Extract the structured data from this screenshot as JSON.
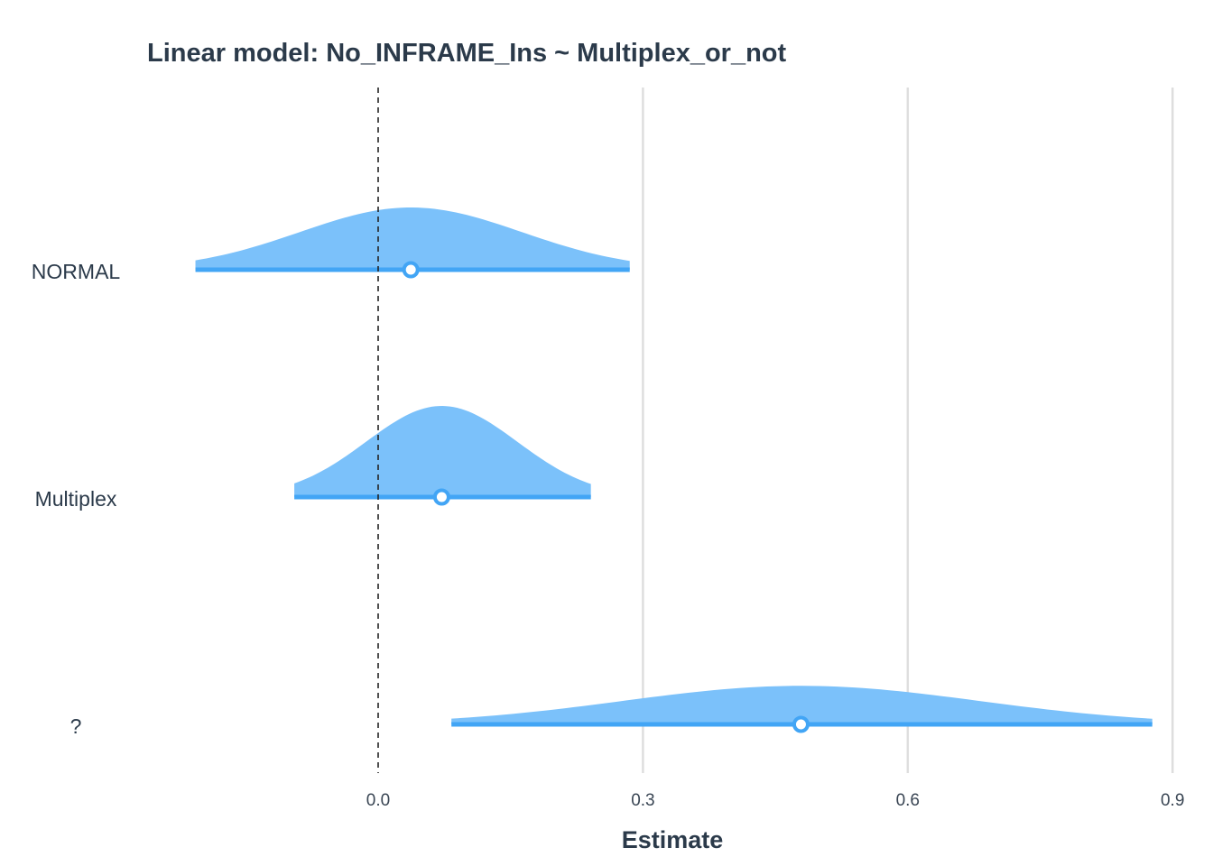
{
  "chart_data": {
    "type": "area",
    "title": "Linear model: No_INFRAME_Ins ~ Multiplex_or_not",
    "xlabel": "Estimate",
    "ylabel": "",
    "xlim": [
      -0.31,
      0.92
    ],
    "xticks": [
      0.0,
      0.3,
      0.6,
      0.9
    ],
    "xtick_labels": [
      "0.0",
      "0.3",
      "0.6",
      "0.9"
    ],
    "grid": true,
    "reference_line": 0,
    "colors": {
      "fill": "#7bc1fa",
      "line": "#42a5f5",
      "text": "#2b3a4a"
    },
    "parameters": [
      {
        "label": "NORMAL",
        "estimate": 0.037,
        "ci_low": -0.207,
        "ci_high": 0.285
      },
      {
        "label": "Multiplex",
        "estimate": 0.072,
        "ci_low": -0.095,
        "ci_high": 0.241
      },
      {
        "label": "?",
        "estimate": 0.479,
        "ci_low": 0.083,
        "ci_high": 0.877
      }
    ]
  }
}
